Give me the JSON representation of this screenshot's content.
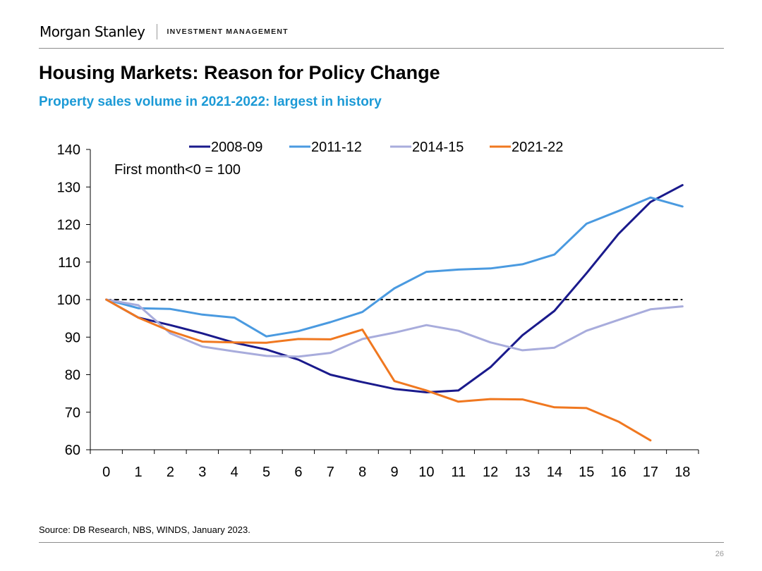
{
  "header": {
    "brand": "Morgan Stanley",
    "division": "INVESTMENT MANAGEMENT"
  },
  "title": "Housing Markets: Reason for Policy Change",
  "subtitle": "Property sales volume in 2021-2022: largest in history",
  "source": "Source: DB Research, NBS, WINDS, January 2023.",
  "page_number": "26",
  "colors": {
    "subtitle": "#1c9ad6"
  },
  "chart_data": {
    "type": "line",
    "title": "",
    "annotation": "First month<0 = 100",
    "xlabel": "",
    "ylabel": "",
    "x": [
      0,
      1,
      2,
      3,
      4,
      5,
      6,
      7,
      8,
      9,
      10,
      11,
      12,
      13,
      14,
      15,
      16,
      17,
      18
    ],
    "ylim": [
      60,
      140
    ],
    "yticks": [
      60,
      70,
      80,
      90,
      100,
      110,
      120,
      130,
      140
    ],
    "reference_line": 100,
    "legend_position": "top",
    "series": [
      {
        "name": "2008-09",
        "color": "#1a1a8c",
        "values": [
          100,
          95.2,
          93.2,
          91,
          88.5,
          86.7,
          84,
          80,
          78,
          76.2,
          75.3,
          75.8,
          82,
          90.5,
          97,
          107,
          117.5,
          126,
          130.5
        ]
      },
      {
        "name": "2011-12",
        "color": "#4a9ae0",
        "values": [
          100,
          97.7,
          97.5,
          96,
          95.2,
          90.2,
          91.6,
          94,
          96.7,
          103,
          107.4,
          108,
          108.3,
          109.4,
          112,
          120.2,
          123.6,
          127.2,
          124.8
        ]
      },
      {
        "name": "2014-15",
        "color": "#a8acdc",
        "values": [
          100,
          98.5,
          91,
          87.5,
          86.2,
          85,
          84.8,
          85.8,
          89.5,
          91.2,
          93.2,
          91.7,
          88.6,
          86.5,
          87.2,
          91.7,
          94.6,
          97.4,
          98.2
        ]
      },
      {
        "name": "2021-22",
        "color": "#f07820",
        "values": [
          100,
          95.2,
          91.6,
          88.8,
          88.6,
          88.5,
          89.5,
          89.4,
          92,
          78.3,
          75.8,
          72.8,
          73.5,
          73.4,
          71.3,
          71.1,
          67.5,
          62.5,
          null
        ]
      }
    ]
  }
}
